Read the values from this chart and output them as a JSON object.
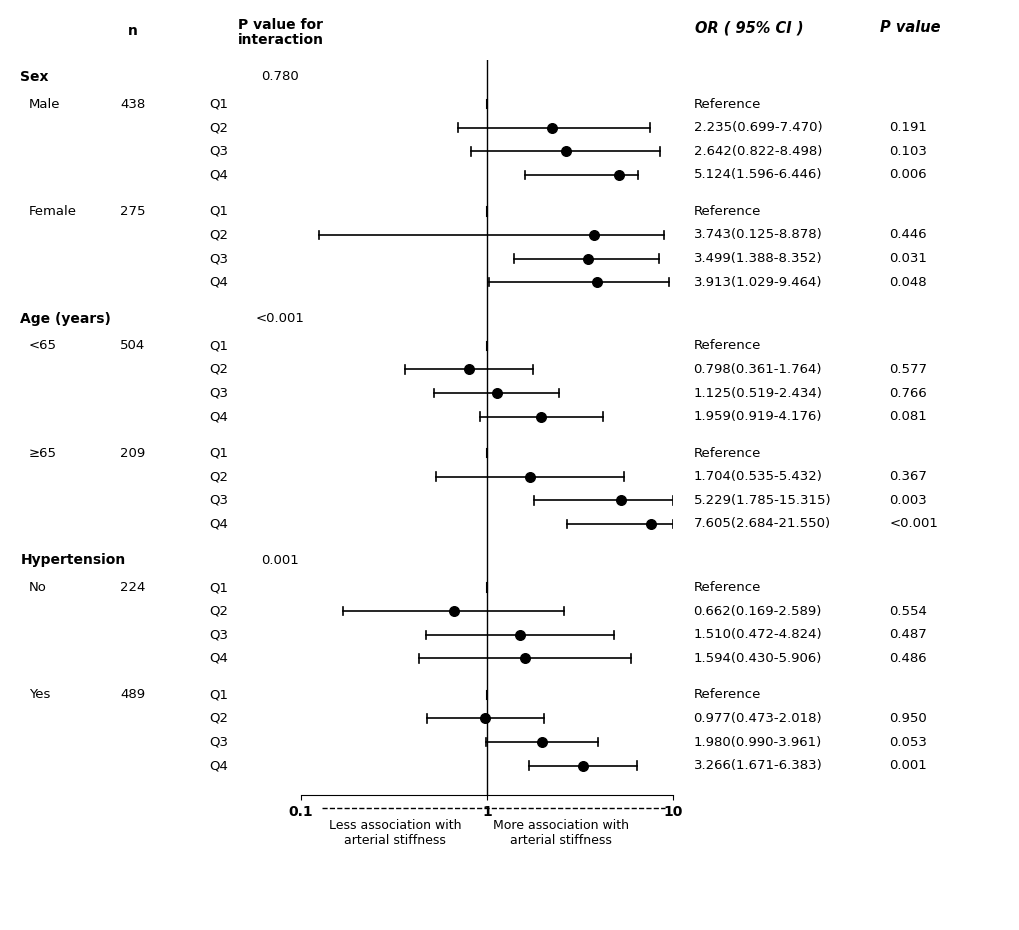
{
  "groups": [
    {
      "label": "Sex",
      "is_header": true,
      "p_interaction": "0.780"
    },
    {
      "subgroup_label": "Male",
      "n": "438",
      "quartiles": [
        {
          "q": "Q1",
          "or": null,
          "lo": null,
          "hi": null,
          "or_text": "Reference",
          "p_text": ""
        },
        {
          "q": "Q2",
          "or": 2.235,
          "lo": 0.699,
          "hi": 7.47,
          "or_text": "2.235(0.699-7.470)",
          "p_text": "0.191"
        },
        {
          "q": "Q3",
          "or": 2.642,
          "lo": 0.822,
          "hi": 8.498,
          "or_text": "2.642(0.822-8.498)",
          "p_text": "0.103"
        },
        {
          "q": "Q4",
          "or": 5.124,
          "lo": 1.596,
          "hi": 6.446,
          "or_text": "5.124(1.596-6.446)",
          "p_text": "0.006"
        }
      ]
    },
    {
      "subgroup_label": "Female",
      "n": "275",
      "quartiles": [
        {
          "q": "Q1",
          "or": null,
          "lo": null,
          "hi": null,
          "or_text": "Reference",
          "p_text": ""
        },
        {
          "q": "Q2",
          "or": 3.743,
          "lo": 0.125,
          "hi": 8.878,
          "or_text": "3.743(0.125-8.878)",
          "p_text": "0.446"
        },
        {
          "q": "Q3",
          "or": 3.499,
          "lo": 1.388,
          "hi": 8.352,
          "or_text": "3.499(1.388-8.352)",
          "p_text": "0.031"
        },
        {
          "q": "Q4",
          "or": 3.913,
          "lo": 1.029,
          "hi": 9.464,
          "or_text": "3.913(1.029-9.464)",
          "p_text": "0.048"
        }
      ]
    },
    {
      "label": "Age (years)",
      "is_header": true,
      "p_interaction": "<0.001"
    },
    {
      "subgroup_label": "<65",
      "n": "504",
      "quartiles": [
        {
          "q": "Q1",
          "or": null,
          "lo": null,
          "hi": null,
          "or_text": "Reference",
          "p_text": ""
        },
        {
          "q": "Q2",
          "or": 0.798,
          "lo": 0.361,
          "hi": 1.764,
          "or_text": "0.798(0.361-1.764)",
          "p_text": "0.577"
        },
        {
          "q": "Q3",
          "or": 1.125,
          "lo": 0.519,
          "hi": 2.434,
          "or_text": "1.125(0.519-2.434)",
          "p_text": "0.766"
        },
        {
          "q": "Q4",
          "or": 1.959,
          "lo": 0.919,
          "hi": 4.176,
          "or_text": "1.959(0.919-4.176)",
          "p_text": "0.081"
        }
      ]
    },
    {
      "subgroup_label": "≥65",
      "n": "209",
      "quartiles": [
        {
          "q": "Q1",
          "or": null,
          "lo": null,
          "hi": null,
          "or_text": "Reference",
          "p_text": ""
        },
        {
          "q": "Q2",
          "or": 1.704,
          "lo": 0.535,
          "hi": 5.432,
          "or_text": "1.704(0.535-5.432)",
          "p_text": "0.367"
        },
        {
          "q": "Q3",
          "or": 5.229,
          "lo": 1.785,
          "hi": 15.315,
          "or_text": "5.229(1.785-15.315)",
          "p_text": "0.003"
        },
        {
          "q": "Q4",
          "or": 7.605,
          "lo": 2.684,
          "hi": 21.55,
          "or_text": "7.605(2.684-21.550)",
          "p_text": "<0.001"
        }
      ]
    },
    {
      "label": "Hypertension",
      "is_header": true,
      "p_interaction": "0.001"
    },
    {
      "subgroup_label": "No",
      "n": "224",
      "quartiles": [
        {
          "q": "Q1",
          "or": null,
          "lo": null,
          "hi": null,
          "or_text": "Reference",
          "p_text": ""
        },
        {
          "q": "Q2",
          "or": 0.662,
          "lo": 0.169,
          "hi": 2.589,
          "or_text": "0.662(0.169-2.589)",
          "p_text": "0.554"
        },
        {
          "q": "Q3",
          "or": 1.51,
          "lo": 0.472,
          "hi": 4.824,
          "or_text": "1.510(0.472-4.824)",
          "p_text": "0.487"
        },
        {
          "q": "Q4",
          "or": 1.594,
          "lo": 0.43,
          "hi": 5.906,
          "or_text": "1.594(0.430-5.906)",
          "p_text": "0.486"
        }
      ]
    },
    {
      "subgroup_label": "Yes",
      "n": "489",
      "quartiles": [
        {
          "q": "Q1",
          "or": null,
          "lo": null,
          "hi": null,
          "or_text": "Reference",
          "p_text": ""
        },
        {
          "q": "Q2",
          "or": 0.977,
          "lo": 0.473,
          "hi": 2.018,
          "or_text": "0.977(0.473-2.018)",
          "p_text": "0.950"
        },
        {
          "q": "Q3",
          "or": 1.98,
          "lo": 0.99,
          "hi": 3.961,
          "or_text": "1.980(0.990-3.961)",
          "p_text": "0.053"
        },
        {
          "q": "Q4",
          "or": 3.266,
          "lo": 1.671,
          "hi": 6.383,
          "or_text": "3.266(1.671-6.383)",
          "p_text": "0.001"
        }
      ]
    }
  ],
  "xmin": 0.1,
  "xmax": 10,
  "dot_size": 48,
  "dot_color": "#000000",
  "bg_color": "#ffffff",
  "fs": 9.5
}
